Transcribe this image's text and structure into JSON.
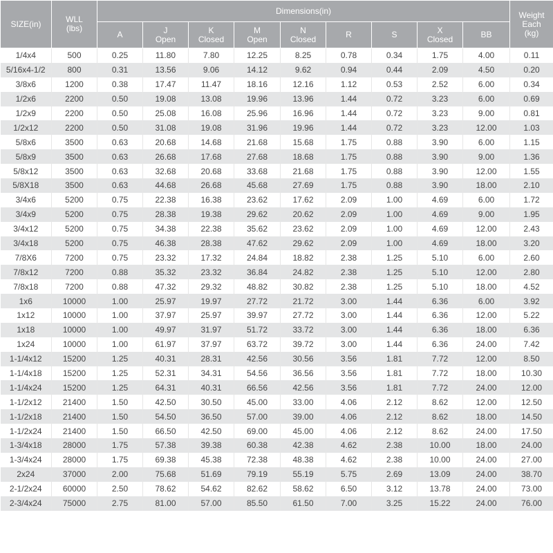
{
  "table": {
    "headers": {
      "size": "SIZE(in)",
      "wll": "WLL\n(lbs)",
      "dimensions": "Dimensions(in)",
      "weight": "Weight\nEach\n(kg)",
      "sub": [
        "A",
        "J\nOpen",
        "K\nClosed",
        "M\nOpen",
        "N\nClosed",
        "R",
        "S",
        "X\nClosed",
        "BB"
      ]
    },
    "rows": [
      [
        "1/4x4",
        "500",
        "0.25",
        "11.80",
        "7.80",
        "12.25",
        "8.25",
        "0.78",
        "0.34",
        "1.75",
        "4.00",
        "0.11"
      ],
      [
        "5/16x4-1/2",
        "800",
        "0.31",
        "13.56",
        "9.06",
        "14.12",
        "9.62",
        "0.94",
        "0.44",
        "2.09",
        "4.50",
        "0.20"
      ],
      [
        "3/8x6",
        "1200",
        "0.38",
        "17.47",
        "11.47",
        "18.16",
        "12.16",
        "1.12",
        "0.53",
        "2.52",
        "6.00",
        "0.34"
      ],
      [
        "1/2x6",
        "2200",
        "0.50",
        "19.08",
        "13.08",
        "19.96",
        "13.96",
        "1.44",
        "0.72",
        "3.23",
        "6.00",
        "0.69"
      ],
      [
        "1/2x9",
        "2200",
        "0.50",
        "25.08",
        "16.08",
        "25.96",
        "16.96",
        "1.44",
        "0.72",
        "3.23",
        "9.00",
        "0.81"
      ],
      [
        "1/2x12",
        "2200",
        "0.50",
        "31.08",
        "19.08",
        "31.96",
        "19.96",
        "1.44",
        "0.72",
        "3.23",
        "12.00",
        "1.03"
      ],
      [
        "5/8x6",
        "3500",
        "0.63",
        "20.68",
        "14.68",
        "21.68",
        "15.68",
        "1.75",
        "0.88",
        "3.90",
        "6.00",
        "1.15"
      ],
      [
        "5/8x9",
        "3500",
        "0.63",
        "26.68",
        "17.68",
        "27.68",
        "18.68",
        "1.75",
        "0.88",
        "3.90",
        "9.00",
        "1.36"
      ],
      [
        "5/8x12",
        "3500",
        "0.63",
        "32.68",
        "20.68",
        "33.68",
        "21.68",
        "1.75",
        "0.88",
        "3.90",
        "12.00",
        "1.55"
      ],
      [
        "5/8X18",
        "3500",
        "0.63",
        "44.68",
        "26.68",
        "45.68",
        "27.69",
        "1.75",
        "0.88",
        "3.90",
        "18.00",
        "2.10"
      ],
      [
        "3/4x6",
        "5200",
        "0.75",
        "22.38",
        "16.38",
        "23.62",
        "17.62",
        "2.09",
        "1.00",
        "4.69",
        "6.00",
        "1.72"
      ],
      [
        "3/4x9",
        "5200",
        "0.75",
        "28.38",
        "19.38",
        "29.62",
        "20.62",
        "2.09",
        "1.00",
        "4.69",
        "9.00",
        "1.95"
      ],
      [
        "3/4x12",
        "5200",
        "0.75",
        "34.38",
        "22.38",
        "35.62",
        "23.62",
        "2.09",
        "1.00",
        "4.69",
        "12.00",
        "2.43"
      ],
      [
        "3/4x18",
        "5200",
        "0.75",
        "46.38",
        "28.38",
        "47.62",
        "29.62",
        "2.09",
        "1.00",
        "4.69",
        "18.00",
        "3.20"
      ],
      [
        "7/8X6",
        "7200",
        "0.75",
        "23.32",
        "17.32",
        "24.84",
        "18.82",
        "2.38",
        "1.25",
        "5.10",
        "6.00",
        "2.60"
      ],
      [
        "7/8x12",
        "7200",
        "0.88",
        "35.32",
        "23.32",
        "36.84",
        "24.82",
        "2.38",
        "1.25",
        "5.10",
        "12.00",
        "2.80"
      ],
      [
        "7/8x18",
        "7200",
        "0.88",
        "47.32",
        "29.32",
        "48.82",
        "30.82",
        "2.38",
        "1.25",
        "5.10",
        "18.00",
        "4.52"
      ],
      [
        "1x6",
        "10000",
        "1.00",
        "25.97",
        "19.97",
        "27.72",
        "21.72",
        "3.00",
        "1.44",
        "6.36",
        "6.00",
        "3.92"
      ],
      [
        "1x12",
        "10000",
        "1.00",
        "37.97",
        "25.97",
        "39.97",
        "27.72",
        "3.00",
        "1.44",
        "6.36",
        "12.00",
        "5.22"
      ],
      [
        "1x18",
        "10000",
        "1.00",
        "49.97",
        "31.97",
        "51.72",
        "33.72",
        "3.00",
        "1.44",
        "6.36",
        "18.00",
        "6.36"
      ],
      [
        "1x24",
        "10000",
        "1.00",
        "61.97",
        "37.97",
        "63.72",
        "39.72",
        "3.00",
        "1.44",
        "6.36",
        "24.00",
        "7.42"
      ],
      [
        "1-1/4x12",
        "15200",
        "1.25",
        "40.31",
        "28.31",
        "42.56",
        "30.56",
        "3.56",
        "1.81",
        "7.72",
        "12.00",
        "8.50"
      ],
      [
        "1-1/4x18",
        "15200",
        "1.25",
        "52.31",
        "34.31",
        "54.56",
        "36.56",
        "3.56",
        "1.81",
        "7.72",
        "18.00",
        "10.30"
      ],
      [
        "1-1/4x24",
        "15200",
        "1.25",
        "64.31",
        "40.31",
        "66.56",
        "42.56",
        "3.56",
        "1.81",
        "7.72",
        "24.00",
        "12.00"
      ],
      [
        "1-1/2x12",
        "21400",
        "1.50",
        "42.50",
        "30.50",
        "45.00",
        "33.00",
        "4.06",
        "2.12",
        "8.62",
        "12.00",
        "12.50"
      ],
      [
        "1-1/2x18",
        "21400",
        "1.50",
        "54.50",
        "36.50",
        "57.00",
        "39.00",
        "4.06",
        "2.12",
        "8.62",
        "18.00",
        "14.50"
      ],
      [
        "1-1/2x24",
        "21400",
        "1.50",
        "66.50",
        "42.50",
        "69.00",
        "45.00",
        "4.06",
        "2.12",
        "8.62",
        "24.00",
        "17.50"
      ],
      [
        "1-3/4x18",
        "28000",
        "1.75",
        "57.38",
        "39.38",
        "60.38",
        "42.38",
        "4.62",
        "2.38",
        "10.00",
        "18.00",
        "24.00"
      ],
      [
        "1-3/4x24",
        "28000",
        "1.75",
        "69.38",
        "45.38",
        "72.38",
        "48.38",
        "4.62",
        "2.38",
        "10.00",
        "24.00",
        "27.00"
      ],
      [
        "2x24",
        "37000",
        "2.00",
        "75.68",
        "51.69",
        "79.19",
        "55.19",
        "5.75",
        "2.69",
        "13.09",
        "24.00",
        "38.70"
      ],
      [
        "2-1/2x24",
        "60000",
        "2.50",
        "78.62",
        "54.62",
        "82.62",
        "58.62",
        "6.50",
        "3.12",
        "13.78",
        "24.00",
        "73.00"
      ],
      [
        "2-3/4x24",
        "75000",
        "2.75",
        "81.00",
        "57.00",
        "85.50",
        "61.50",
        "7.00",
        "3.25",
        "15.22",
        "24.00",
        "76.00"
      ]
    ]
  }
}
